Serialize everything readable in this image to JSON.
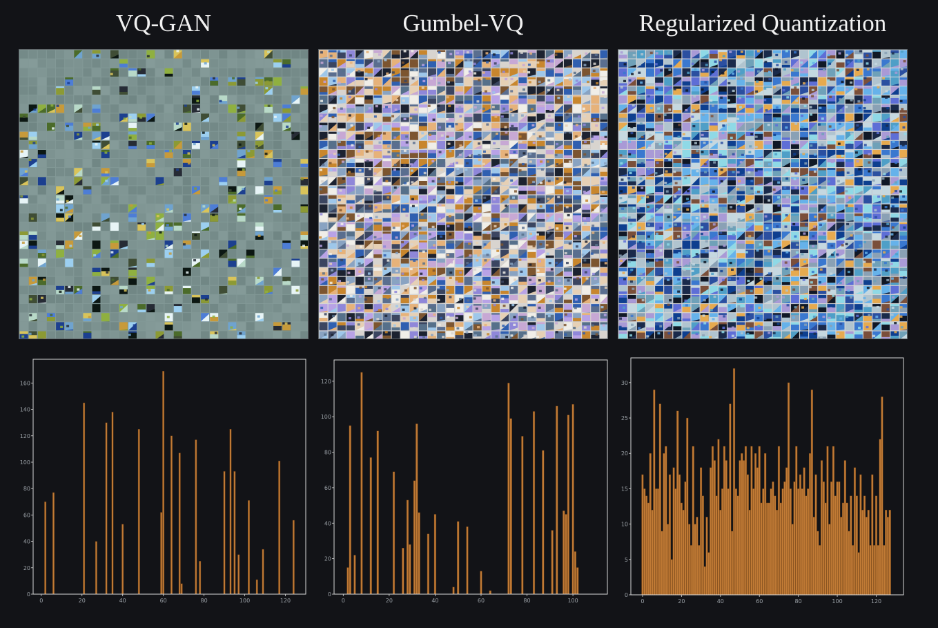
{
  "panels": [
    {
      "title": "VQ-GAN",
      "codebook": {
        "grid": 32,
        "style": "sparse",
        "usage_fraction": 0.22
      }
    },
    {
      "title": "Gumbel-VQ",
      "codebook": {
        "grid": 32,
        "style": "dense",
        "usage_fraction": 1.0
      }
    },
    {
      "title": "Regularized Quantization",
      "codebook": {
        "grid": 32,
        "style": "dense-blue",
        "usage_fraction": 1.0
      }
    }
  ],
  "chart_data": [
    {
      "type": "bar",
      "title": "",
      "xlabel": "",
      "ylabel": "",
      "xlim": [
        -4,
        130
      ],
      "ylim": [
        0,
        178
      ],
      "xticks": [
        0,
        20,
        40,
        60,
        80,
        100,
        120
      ],
      "yticks": [
        0,
        20,
        40,
        60,
        80,
        100,
        120,
        140,
        160
      ],
      "grid": false,
      "legend": "none",
      "bar_color": "#c07a35",
      "x": [
        2,
        6,
        21,
        27,
        32,
        35,
        40,
        48,
        59,
        60,
        64,
        68,
        69,
        76,
        78,
        90,
        93,
        95,
        97,
        102,
        106,
        109,
        117,
        124
      ],
      "values": [
        70,
        77,
        145,
        40,
        130,
        138,
        53,
        125,
        62,
        169,
        120,
        107,
        8,
        117,
        25,
        93,
        125,
        93,
        30,
        71,
        11,
        34,
        101,
        56
      ]
    },
    {
      "type": "bar",
      "title": "",
      "xlabel": "",
      "ylabel": "",
      "xlim": [
        -4,
        115
      ],
      "ylim": [
        0,
        132
      ],
      "xticks": [
        0,
        20,
        40,
        60,
        80,
        100
      ],
      "yticks": [
        0,
        20,
        40,
        60,
        80,
        100,
        120
      ],
      "grid": false,
      "legend": "none",
      "bar_color": "#c07a35",
      "x": [
        2,
        3,
        5,
        8,
        12,
        15,
        22,
        26,
        28,
        29,
        31,
        32,
        33,
        37,
        40,
        48,
        50,
        54,
        60,
        64,
        72,
        73,
        78,
        83,
        87,
        91,
        93,
        96,
        97,
        98,
        100,
        101,
        102
      ],
      "values": [
        15,
        95,
        22,
        125,
        77,
        92,
        69,
        26,
        53,
        28,
        64,
        96,
        46,
        34,
        45,
        4,
        41,
        38,
        13,
        2,
        119,
        99,
        89,
        103,
        81,
        36,
        106,
        47,
        45,
        101,
        107,
        24,
        15
      ]
    },
    {
      "type": "bar",
      "title": "",
      "xlabel": "",
      "ylabel": "",
      "xlim": [
        -6,
        134
      ],
      "ylim": [
        0,
        33.5
      ],
      "xticks": [
        0,
        20,
        40,
        60,
        80,
        100,
        120
      ],
      "yticks": [
        0,
        5,
        10,
        15,
        20,
        25,
        30
      ],
      "grid": false,
      "legend": "none",
      "bar_color": "#c07a35",
      "x": [
        0,
        1,
        2,
        3,
        4,
        5,
        6,
        7,
        8,
        9,
        10,
        11,
        12,
        13,
        14,
        15,
        16,
        17,
        18,
        19,
        20,
        21,
        22,
        23,
        24,
        25,
        26,
        27,
        28,
        29,
        30,
        31,
        32,
        33,
        34,
        35,
        36,
        37,
        38,
        39,
        40,
        41,
        42,
        43,
        44,
        45,
        46,
        47,
        48,
        49,
        50,
        51,
        52,
        53,
        54,
        55,
        56,
        57,
        58,
        59,
        60,
        61,
        62,
        63,
        64,
        65,
        66,
        67,
        68,
        69,
        70,
        71,
        72,
        73,
        74,
        75,
        76,
        77,
        78,
        79,
        80,
        81,
        82,
        83,
        84,
        85,
        86,
        87,
        88,
        89,
        90,
        91,
        92,
        93,
        94,
        95,
        96,
        97,
        98,
        99,
        100,
        101,
        102,
        103,
        104,
        105,
        106,
        107,
        108,
        109,
        110,
        111,
        112,
        113,
        114,
        115,
        116,
        117,
        118,
        119,
        120,
        121,
        122,
        123,
        124,
        125,
        126,
        127
      ],
      "values": [
        17,
        15,
        14,
        13,
        20,
        12,
        29,
        15,
        15,
        27,
        9,
        20,
        21,
        10,
        17,
        5,
        18,
        15,
        26,
        17,
        13,
        12,
        16,
        25,
        10,
        7,
        21,
        10,
        11,
        7,
        18,
        14,
        4,
        11,
        6,
        18,
        21,
        19,
        14,
        22,
        12,
        15,
        21,
        19,
        15,
        27,
        9,
        32,
        15,
        14,
        19,
        20,
        19,
        21,
        17,
        12,
        21,
        15,
        20,
        18,
        21,
        13,
        15,
        20,
        13,
        13,
        15,
        16,
        14,
        12,
        21,
        13,
        15,
        16,
        18,
        30,
        15,
        10,
        16,
        21,
        15,
        17,
        15,
        18,
        14,
        15,
        20,
        29,
        11,
        17,
        9,
        7,
        19,
        16,
        13,
        21,
        10,
        16,
        21,
        14,
        16,
        16,
        11,
        13,
        19,
        13,
        9,
        14,
        7,
        18,
        14,
        6,
        17,
        12,
        14,
        11,
        12,
        7,
        17,
        7,
        14,
        7,
        22,
        28,
        7,
        12,
        11,
        12
      ]
    }
  ]
}
